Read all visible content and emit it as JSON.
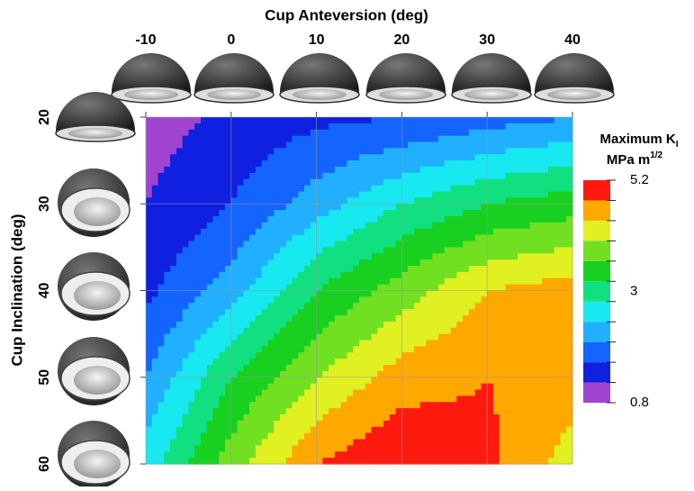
{
  "chart_data": {
    "type": "heatmap",
    "xlabel": "Cup Anteversion (deg)",
    "ylabel": "Cup Inclination (deg)",
    "x": [
      -10,
      0,
      10,
      20,
      30,
      40
    ],
    "y": [
      20,
      30,
      40,
      50,
      60
    ],
    "values": [
      [
        1.0,
        1.3,
        1.5,
        1.6,
        1.8,
        2.0
      ],
      [
        1.2,
        1.6,
        2.2,
        2.8,
        3.2,
        3.4
      ],
      [
        1.5,
        2.2,
        3.2,
        3.8,
        4.4,
        4.6
      ],
      [
        2.0,
        3.2,
        4.0,
        4.6,
        4.8,
        4.6
      ],
      [
        2.6,
        3.8,
        4.8,
        5.2,
        4.9,
        4.2
      ]
    ],
    "xlim": [
      -10,
      40
    ],
    "xticks": [
      -10,
      0,
      10,
      20,
      30,
      40
    ],
    "ylim": [
      20,
      60
    ],
    "yticks": [
      20,
      30,
      40,
      50,
      60
    ],
    "y_inverted": true,
    "grid": true,
    "colorbar": {
      "title": "Maximum K",
      "title_subscript": "I",
      "units": "MPa m",
      "units_superscript": "1/2",
      "levels": [
        0.8,
        1.2,
        1.6,
        2.0,
        2.4,
        2.8,
        3.2,
        3.6,
        4.0,
        4.4,
        4.8,
        5.2
      ],
      "colors": [
        "#a044d0",
        "#1020e0",
        "#1464ff",
        "#20b0ff",
        "#18e8f0",
        "#10e080",
        "#18d020",
        "#70e020",
        "#e0f020",
        "#ffa800",
        "#ff1a10"
      ],
      "ticks": [
        0.8,
        3.0,
        5.2
      ]
    }
  }
}
